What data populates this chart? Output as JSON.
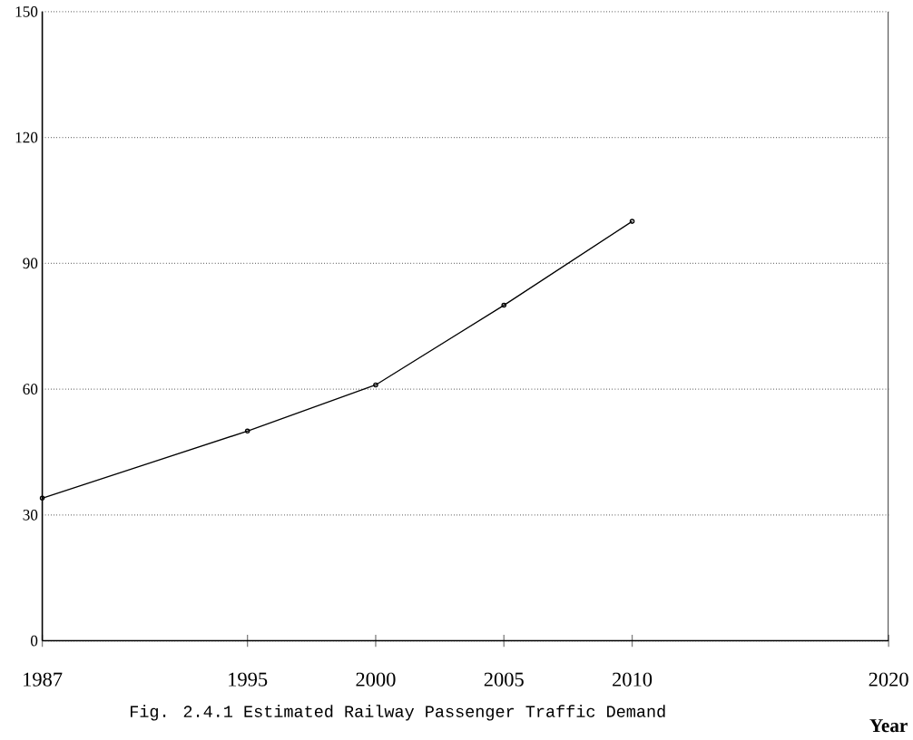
{
  "chart_data": {
    "type": "line",
    "title": "Fig. 2.4.1  Estimated Railway Passenger Traffic Demand",
    "xlabel": "Year",
    "x": [
      1987,
      1995,
      2000,
      2005,
      2010
    ],
    "values": [
      34,
      50,
      61,
      80,
      100
    ],
    "color": "#000000",
    "xlim": [
      1987,
      2020
    ],
    "xticks": [
      1987,
      1995,
      2000,
      2005,
      2010,
      2020
    ],
    "ylim": [
      0,
      150
    ],
    "yticks": [
      0,
      30,
      60,
      90,
      120,
      150
    ],
    "grid": "y",
    "marker": "circle",
    "line_style": "solid"
  }
}
